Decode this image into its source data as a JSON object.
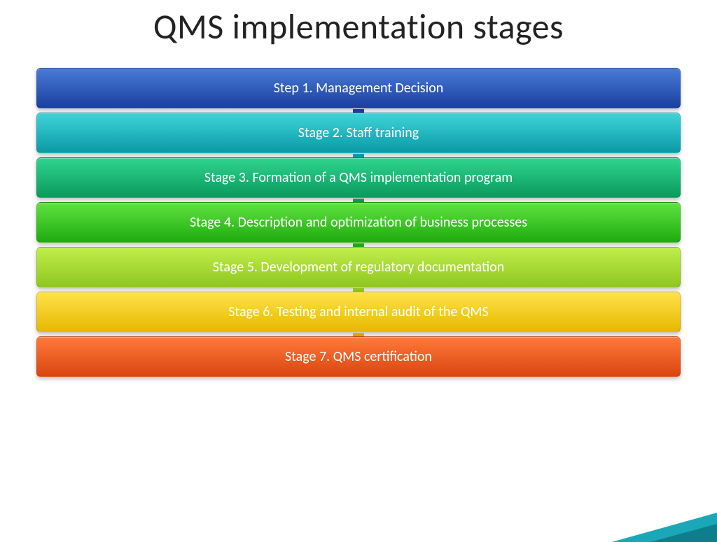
{
  "title": "QMS implementation stages",
  "title_fontsize": 50,
  "title_color": "#222222",
  "background_color": "#ffffff",
  "diagram": {
    "type": "flowchart",
    "orientation": "vertical",
    "stage_width": 920,
    "stage_height": 58,
    "stage_border_radius": 6,
    "stage_fontsize": 20,
    "stage_text_color": "#ffffff",
    "arrow_width": 34,
    "arrow_height": 28,
    "stages": [
      {
        "label": "Step 1. Management Decision",
        "gradient_top": "#4a7bd6",
        "gradient_bottom": "#1a3fa0",
        "arrow_color": "#1a3fa0"
      },
      {
        "label": "Stage 2. Staff training",
        "gradient_top": "#3fd4d9",
        "gradient_bottom": "#0a9aa6",
        "arrow_color": "#0a9aa6"
      },
      {
        "label": "Stage 3. Formation of a QMS implementation program",
        "gradient_top": "#2fd48e",
        "gradient_bottom": "#0a9a5e",
        "arrow_color": "#0a9a5e"
      },
      {
        "label": "Stage 4. Description and optimization of business processes",
        "gradient_top": "#5fe342",
        "gradient_bottom": "#1fab0e",
        "arrow_color": "#1fab0e"
      },
      {
        "label": "Stage 5. Development of regulatory documentation",
        "gradient_top": "#c0ee4a",
        "gradient_bottom": "#8fc71f",
        "arrow_color": "#8fc71f"
      },
      {
        "label": "Stage 6. Testing and internal audit of the QMS",
        "gradient_top": "#ffe24a",
        "gradient_bottom": "#e6b800",
        "arrow_color": "#e6a500"
      },
      {
        "label": "Stage 7. QMS certification",
        "gradient_top": "#ff7a3a",
        "gradient_bottom": "#d94510",
        "arrow_color": "#d94510"
      }
    ]
  },
  "corner_accent": {
    "color_light": "#1aa8b8",
    "color_dark": "#0e7e8c"
  }
}
